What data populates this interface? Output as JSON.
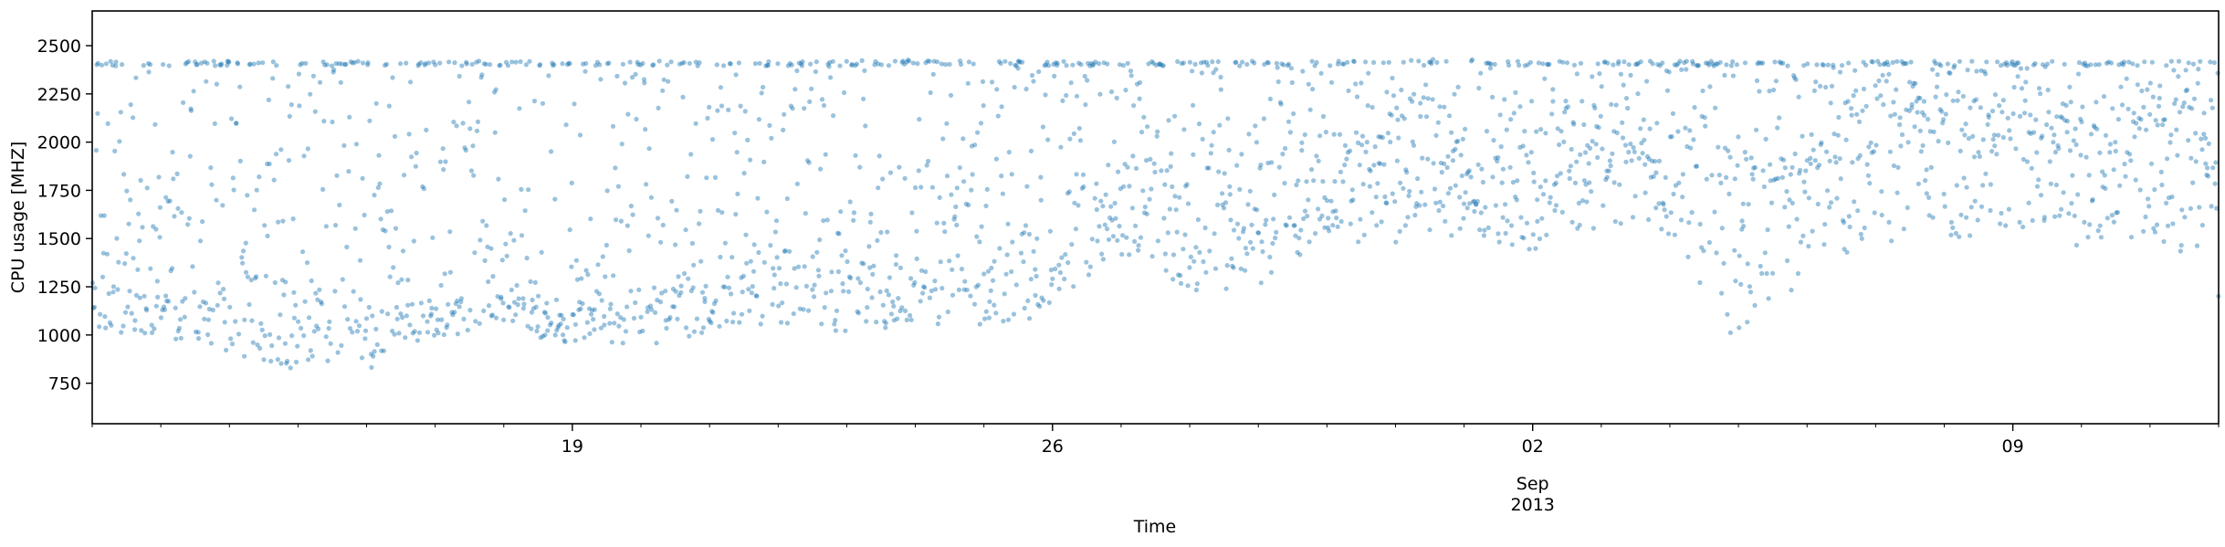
{
  "chart_data": {
    "type": "scatter",
    "title": "",
    "xlabel": "Time",
    "ylabel": "CPU usage [MHZ]",
    "x_start": "2013-08-12",
    "x_end": "2013-09-12",
    "ylim": [
      540,
      2680
    ],
    "grid": false,
    "legend": "none",
    "point_color": "#1f77b4",
    "y_ticks": [
      750,
      1000,
      1250,
      1500,
      1750,
      2000,
      2250,
      2500
    ],
    "x_ticks": [
      {
        "date": "2013-08-19",
        "label": "19",
        "sub": ""
      },
      {
        "date": "2013-08-26",
        "label": "26",
        "sub": ""
      },
      {
        "date": "2013-09-02",
        "label": "02",
        "sub": "Sep\n2013"
      },
      {
        "date": "2013-09-09",
        "label": "09",
        "sub": ""
      }
    ],
    "series": [
      {
        "x": [
          "2013-08-12",
          "2013-08-13",
          "2013-08-14",
          "2013-08-15",
          "2013-08-16",
          "2013-08-17",
          "2013-08-18",
          "2013-08-19",
          "2013-08-20",
          "2013-08-21",
          "2013-08-22",
          "2013-08-23",
          "2013-08-24",
          "2013-08-25",
          "2013-08-26",
          "2013-08-27",
          "2013-08-28",
          "2013-08-29",
          "2013-08-30",
          "2013-08-31",
          "2013-09-01",
          "2013-09-02",
          "2013-09-03",
          "2013-09-04",
          "2013-09-05",
          "2013-09-06",
          "2013-09-07",
          "2013-09-08",
          "2013-09-09",
          "2013-09-10",
          "2013-09-11",
          "2013-09-12"
        ],
        "y_min": [
          980,
          1000,
          880,
          820,
          790,
          980,
          1000,
          960,
          940,
          1000,
          1050,
          1000,
          1060,
          1040,
          1100,
          1400,
          1220,
          1250,
          1500,
          1450,
          1500,
          1420,
          1550,
          1500,
          870,
          1300,
          1450,
          1500,
          1500,
          1450,
          1500,
          1180
        ],
        "y_median": [
          1250,
          1200,
          1220,
          1100,
          1100,
          1150,
          1200,
          1150,
          1180,
          1250,
          1350,
          1300,
          1350,
          1350,
          1350,
          1750,
          1650,
          1650,
          1850,
          2000,
          1700,
          1700,
          2050,
          1850,
          1750,
          1850,
          1950,
          2050,
          2000,
          1950,
          2050,
          1850
        ],
        "y_max": [
          2420,
          2420,
          2420,
          2420,
          2420,
          2420,
          2420,
          2420,
          2420,
          2420,
          2420,
          2420,
          2430,
          2420,
          2420,
          2420,
          2420,
          2420,
          2420,
          2430,
          2430,
          2420,
          2420,
          2420,
          2420,
          2420,
          2420,
          2420,
          2420,
          2420,
          2420,
          2420
        ]
      }
    ]
  }
}
